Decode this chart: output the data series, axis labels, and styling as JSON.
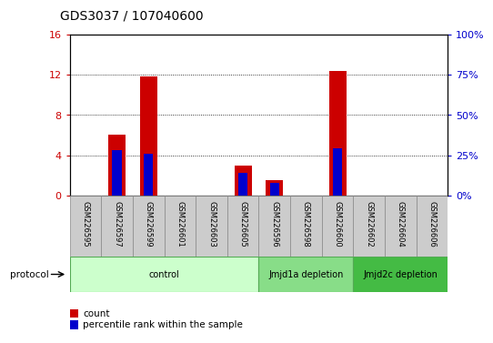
{
  "title": "GDS3037 / 107040600",
  "samples": [
    "GSM226595",
    "GSM226597",
    "GSM226599",
    "GSM226601",
    "GSM226603",
    "GSM226605",
    "GSM226596",
    "GSM226598",
    "GSM226600",
    "GSM226602",
    "GSM226604",
    "GSM226606"
  ],
  "count_values": [
    0,
    6.0,
    11.8,
    0,
    0,
    3.0,
    1.5,
    0,
    12.4,
    0,
    0,
    0
  ],
  "percentile_values": [
    0,
    28,
    26,
    0,
    0,
    14,
    8,
    0,
    29,
    0,
    0,
    0
  ],
  "ylim_left": [
    0,
    16
  ],
  "ylim_right": [
    0,
    100
  ],
  "yticks_left": [
    0,
    4,
    8,
    12,
    16
  ],
  "yticks_right": [
    0,
    25,
    50,
    75,
    100
  ],
  "ytick_labels_right": [
    "0%",
    "25%",
    "50%",
    "75%",
    "100%"
  ],
  "count_color": "#cc0000",
  "percentile_color": "#0000cc",
  "bar_width": 0.55,
  "groups": [
    {
      "label": "control",
      "start": 0,
      "end": 5,
      "color": "#ccffcc",
      "edge_color": "#55aa55"
    },
    {
      "label": "Jmjd1a depletion",
      "start": 6,
      "end": 8,
      "color": "#88dd88",
      "edge_color": "#55aa55"
    },
    {
      "label": "Jmjd2c depletion",
      "start": 9,
      "end": 11,
      "color": "#44bb44",
      "edge_color": "#55aa55"
    }
  ],
  "protocol_label": "protocol",
  "legend_count_label": "count",
  "legend_percentile_label": "percentile rank within the sample",
  "tick_label_color_left": "#cc0000",
  "tick_label_color_right": "#0000cc",
  "plot_bg_color": "#ffffff",
  "sample_box_color": "#cccccc",
  "sample_box_edge": "#888888"
}
